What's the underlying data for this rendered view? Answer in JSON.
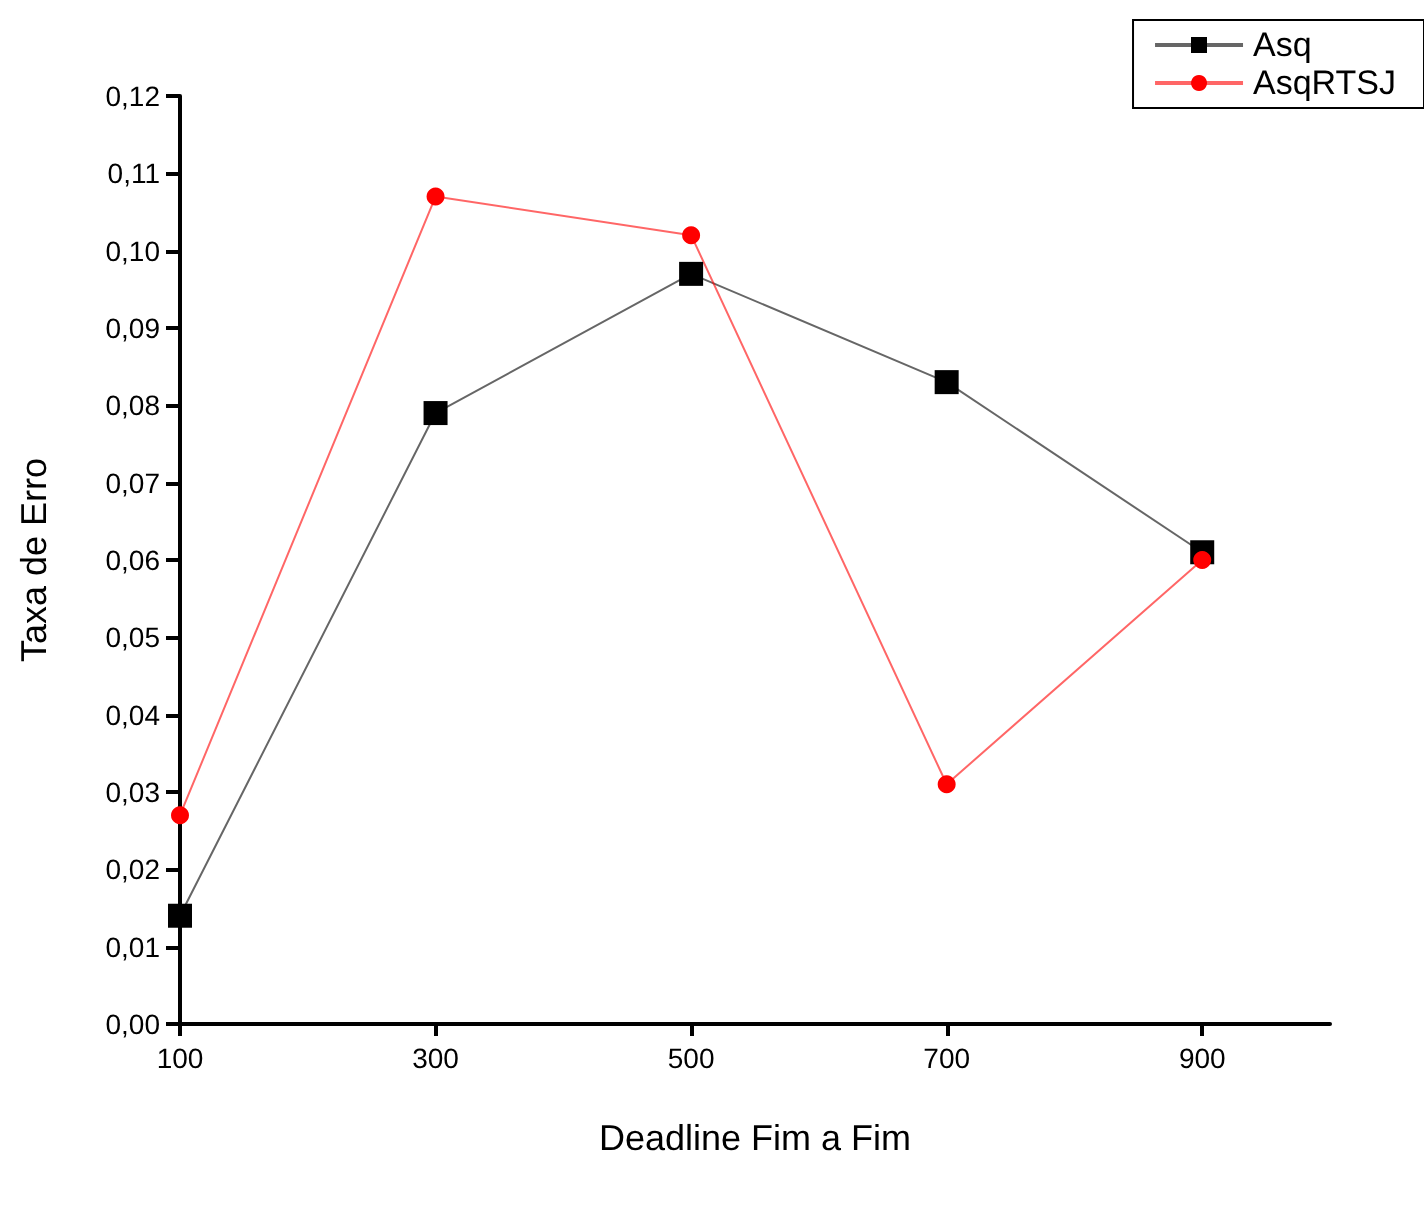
{
  "chart_data": {
    "type": "line",
    "xlabel": "Deadline Fim a Fim",
    "ylabel": "Taxa de Erro",
    "x": [
      100,
      300,
      500,
      700,
      900
    ],
    "series": [
      {
        "name": "Asq",
        "color": "#000000",
        "marker": "square",
        "values": [
          0.014,
          0.079,
          0.097,
          0.083,
          0.061
        ]
      },
      {
        "name": "AsqRTSJ",
        "color": "#ff0000",
        "marker": "circle",
        "values": [
          0.027,
          0.107,
          0.102,
          0.031,
          0.06
        ]
      }
    ],
    "xlim": [
      100,
      1000
    ],
    "xticks": [
      100,
      300,
      500,
      700,
      900
    ],
    "ylim": [
      0,
      0.12
    ],
    "yticks": [
      {
        "value": 0,
        "label": "0,00"
      },
      {
        "value": 0.01,
        "label": "0,01"
      },
      {
        "value": 0.02,
        "label": "0,02"
      },
      {
        "value": 0.03,
        "label": "0,03"
      },
      {
        "value": 0.04,
        "label": "0,04"
      },
      {
        "value": 0.05,
        "label": "0,05"
      },
      {
        "value": 0.06,
        "label": "0,06"
      },
      {
        "value": 0.07,
        "label": "0,07"
      },
      {
        "value": 0.08,
        "label": "0,08"
      },
      {
        "value": 0.09,
        "label": "0,09"
      },
      {
        "value": 0.1,
        "label": "0,10"
      },
      {
        "value": 0.11,
        "label": "0,11"
      },
      {
        "value": 0.12,
        "label": "0,12"
      }
    ],
    "grid": false,
    "legend": "top right",
    "line_style": "solid"
  }
}
